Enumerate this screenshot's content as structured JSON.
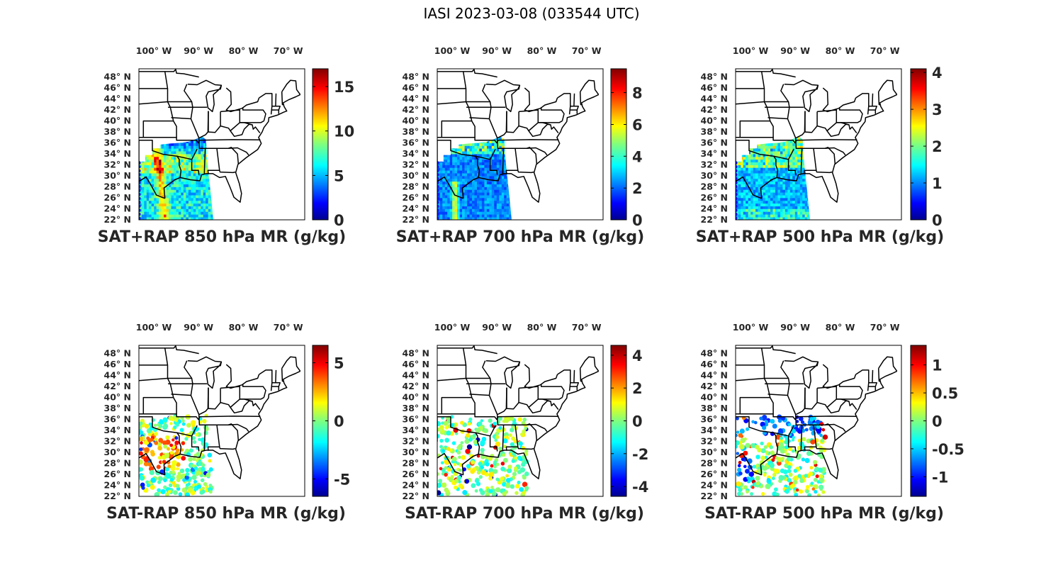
{
  "figure": {
    "title": "IASI 2023-03-08 (033544 UTC)"
  },
  "map": {
    "lon_ticks": [
      "100° W",
      "90° W",
      "80° W",
      "70° W"
    ],
    "lon_values": [
      -100,
      -90,
      -80,
      -70
    ],
    "lat_ticks": [
      "48° N",
      "46° N",
      "44° N",
      "42° N",
      "40° N",
      "38° N",
      "36° N",
      "34° N",
      "32° N",
      "30° N",
      "28° N",
      "26° N",
      "24° N",
      "22° N"
    ],
    "lat_values": [
      48,
      46,
      44,
      42,
      40,
      38,
      36,
      34,
      32,
      30,
      28,
      26,
      24,
      22
    ],
    "extent": {
      "lon": [
        -103,
        -66
      ],
      "lat": [
        22,
        49.5
      ]
    }
  },
  "panels": [
    {
      "label": "SAT+RAP 850 hPa MR (g/kg)",
      "kind": "swath",
      "clim": [
        0,
        17
      ],
      "colorbar_ticks": [
        "0",
        "5",
        "10",
        "15"
      ],
      "colorbar_values": [
        0,
        5,
        10,
        15
      ]
    },
    {
      "label": "SAT+RAP 700 hPa MR (g/kg)",
      "kind": "swath",
      "clim": [
        0,
        9.5
      ],
      "colorbar_ticks": [
        "0",
        "2",
        "4",
        "6",
        "8"
      ],
      "colorbar_values": [
        0,
        2,
        4,
        6,
        8
      ]
    },
    {
      "label": "SAT+RAP 500 hPa MR (g/kg)",
      "kind": "swath",
      "clim": [
        0,
        4.1
      ],
      "colorbar_ticks": [
        "0",
        "1",
        "2",
        "3",
        "4"
      ],
      "colorbar_values": [
        0,
        1,
        2,
        3,
        4
      ]
    },
    {
      "label": "SAT-RAP 850 hPa MR (g/kg)",
      "kind": "diff",
      "clim": [
        -6.5,
        6.5
      ],
      "colorbar_ticks": [
        "-5",
        "0",
        "5"
      ],
      "colorbar_values": [
        -5,
        0,
        5
      ]
    },
    {
      "label": "SAT-RAP 700 hPa MR (g/kg)",
      "kind": "diff",
      "clim": [
        -4.6,
        4.6
      ],
      "colorbar_ticks": [
        "-4",
        "-2",
        "0",
        "2",
        "4"
      ],
      "colorbar_values": [
        -4,
        -2,
        0,
        2,
        4
      ]
    },
    {
      "label": "SAT-RAP 500 hPa MR (g/kg)",
      "kind": "diff",
      "clim": [
        -1.35,
        1.35
      ],
      "colorbar_ticks": [
        "-1",
        "-0.5",
        "0",
        "0.5",
        "1"
      ],
      "colorbar_values": [
        -1,
        -0.5,
        0,
        0.5,
        1
      ]
    }
  ],
  "colormap": "jet"
}
